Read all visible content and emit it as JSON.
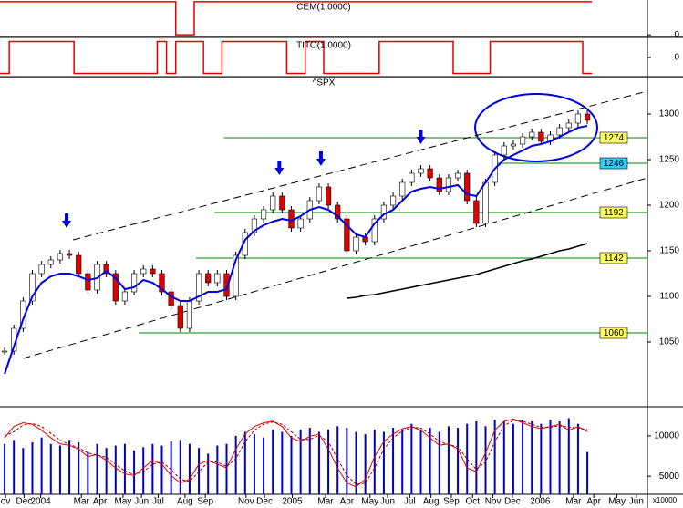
{
  "chart_data": [
    {
      "type": "step",
      "title": "CEM(1.0000)",
      "xlim": [
        0,
        70
      ],
      "ylim": [
        -0.05,
        1.05
      ],
      "yticks": [
        0
      ],
      "color": "#e00000",
      "values": [
        1,
        1,
        1,
        1,
        1,
        1,
        1,
        1,
        1,
        1,
        1,
        1,
        1,
        1,
        1,
        1,
        1,
        1,
        1,
        0,
        0,
        1,
        1,
        1,
        1,
        1,
        1,
        1,
        1,
        1,
        1,
        1,
        1,
        1,
        1,
        1,
        1,
        1,
        1,
        1,
        1,
        1,
        1,
        1,
        1,
        1,
        1,
        1,
        1,
        1,
        1,
        1,
        1,
        1,
        1,
        1,
        1,
        1,
        1,
        1,
        1,
        1,
        1,
        1
      ]
    },
    {
      "type": "step",
      "title": "TITO(1.0000)",
      "xlim": [
        0,
        70
      ],
      "ylim": [
        -1.2,
        1.2
      ],
      "yticks": [
        0
      ],
      "color": "#e00000",
      "values": [
        -1,
        1,
        1,
        1,
        1,
        1,
        1,
        1,
        -1,
        -1,
        -1,
        -1,
        -1,
        -1,
        -1,
        -1,
        -1,
        1,
        -1,
        1,
        1,
        1,
        -1,
        -1,
        1,
        1,
        1,
        1,
        1,
        1,
        1,
        -1,
        -1,
        1,
        1,
        -1,
        -1,
        -1,
        -1,
        -1,
        -1,
        1,
        1,
        1,
        1,
        1,
        1,
        1,
        1,
        -1,
        -1,
        -1,
        -1,
        1,
        1,
        1,
        1,
        1,
        1,
        1,
        1,
        1,
        1,
        -1
      ]
    },
    {
      "type": "candlestick",
      "title": "^SPX",
      "xlim": [
        0,
        70
      ],
      "ylim": [
        980,
        1340
      ],
      "yticks": [
        1050,
        1100,
        1150,
        1200,
        1250,
        1300
      ],
      "up_color": "#ffffff",
      "down_color": "#e00000",
      "values": [
        1040,
        1065,
        1095,
        1125,
        1135,
        1140,
        1147,
        1145,
        1125,
        1107,
        1135,
        1125,
        1095,
        1105,
        1125,
        1130,
        1125,
        1105,
        1090,
        1065,
        1095,
        1125,
        1115,
        1125,
        1100,
        1145,
        1170,
        1185,
        1195,
        1210,
        1195,
        1175,
        1185,
        1205,
        1220,
        1200,
        1185,
        1150,
        1165,
        1160,
        1185,
        1200,
        1210,
        1225,
        1235,
        1240,
        1230,
        1215,
        1230,
        1235,
        1205,
        1180,
        1225,
        1255,
        1265,
        1267,
        1275,
        1280,
        1270,
        1277,
        1285,
        1290,
        1300,
        1293
      ],
      "lines": [
        {
          "color": "#0000e0",
          "values": [
            1015,
            1045,
            1075,
            1100,
            1115,
            1122,
            1125,
            1125,
            1122,
            1118,
            1120,
            1128,
            1120,
            1108,
            1110,
            1118,
            1115,
            1108,
            1100,
            1095,
            1095,
            1100,
            1105,
            1105,
            1108,
            1140,
            1162,
            1172,
            1178,
            1182,
            1185,
            1183,
            1188,
            1195,
            1198,
            1195,
            1188,
            1178,
            1168,
            1165,
            1180,
            1190,
            1195,
            1205,
            1215,
            1218,
            1220,
            1218,
            1220,
            1222,
            1212,
            1210,
            1225,
            1240,
            1250,
            1255,
            1260,
            1265,
            1267,
            1270,
            1275,
            1280,
            1285,
            1287
          ]
        },
        {
          "color": "#000000",
          "values": [
            null,
            null,
            null,
            null,
            null,
            null,
            null,
            null,
            null,
            null,
            null,
            null,
            null,
            null,
            null,
            null,
            null,
            null,
            null,
            null,
            null,
            null,
            null,
            null,
            null,
            null,
            null,
            null,
            null,
            null,
            null,
            null,
            null,
            null,
            null,
            null,
            null,
            1098,
            1099,
            1101,
            1102,
            1104,
            1106,
            1108,
            1110,
            1112,
            1114,
            1116,
            1118,
            1120,
            1122,
            1124,
            1127,
            1130,
            1133,
            1136,
            1139,
            1141,
            1144,
            1147,
            1150,
            1152,
            1155,
            1158
          ]
        }
      ],
      "levels": [
        {
          "value": 1274,
          "from": 24.2,
          "color": "#ffff66"
        },
        {
          "value": 1246,
          "from": 53.7,
          "color": "#33ccff"
        },
        {
          "value": 1192,
          "from": 23.2,
          "color": "#ffff66"
        },
        {
          "value": 1142,
          "from": 21.2,
          "color": "#ffff66"
        },
        {
          "value": 1060,
          "from": 15.0,
          "color": "#ffff66"
        }
      ],
      "trendlines": [
        {
          "x": [
            7.9,
            70
          ],
          "y": [
            1162,
            1325
          ]
        },
        {
          "x": [
            2.5,
            70
          ],
          "y": [
            1032,
            1230
          ]
        }
      ],
      "markers": [
        {
          "x": 7.2,
          "y": 1175
        },
        {
          "x": 30.2,
          "y": 1233
        },
        {
          "x": 34.7,
          "y": 1243
        },
        {
          "x": 45.5,
          "y": 1267
        }
      ]
    },
    {
      "type": "volume",
      "xlim": [
        0,
        70
      ],
      "ylim": [
        2750,
        13500
      ],
      "yticks": [
        5000,
        10000
      ],
      "y2lim": [
        -5,
        110
      ],
      "unit": "x10000",
      "color": "#0000c0",
      "values": [
        9000,
        9500,
        8500,
        9200,
        9800,
        9000,
        8800,
        9500,
        9200,
        8000,
        9000,
        8500,
        8800,
        9000,
        8200,
        8600,
        9000,
        8800,
        9300,
        9500,
        9000,
        8500,
        7800,
        8800,
        9000,
        10000,
        10500,
        10200,
        9800,
        10800,
        10500,
        10000,
        10800,
        11000,
        10500,
        10800,
        11200,
        11000,
        10500,
        10200,
        10800,
        10500,
        11000,
        10800,
        11500,
        10800,
        11000,
        10500,
        11200,
        11000,
        11500,
        11800,
        11200,
        12000,
        11800,
        11500,
        12000,
        11800,
        11500,
        12000,
        11800,
        12200,
        11500,
        8000
      ],
      "series": [
        {
          "color": "#e00000",
          "dashed": false,
          "values": [
            70,
            85,
            90,
            88,
            80,
            70,
            62,
            60,
            55,
            45,
            48,
            40,
            30,
            22,
            20,
            30,
            40,
            35,
            20,
            10,
            15,
            35,
            40,
            35,
            30,
            55,
            75,
            85,
            90,
            92,
            85,
            70,
            65,
            72,
            75,
            55,
            30,
            10,
            5,
            15,
            45,
            65,
            75,
            82,
            85,
            80,
            70,
            60,
            62,
            55,
            30,
            25,
            50,
            80,
            92,
            95,
            90,
            85,
            82,
            85,
            88,
            80,
            85,
            78
          ],
          "axis": "y2"
        },
        {
          "color": "#a00000",
          "dashed": true,
          "values": [
            72,
            78,
            87,
            89,
            85,
            76,
            67,
            61,
            57,
            50,
            47,
            44,
            35,
            26,
            21,
            25,
            35,
            38,
            28,
            15,
            12,
            25,
            38,
            38,
            32,
            42,
            65,
            80,
            88,
            91,
            88,
            78,
            68,
            68,
            73,
            65,
            42,
            20,
            8,
            10,
            30,
            55,
            70,
            79,
            84,
            83,
            75,
            65,
            61,
            58,
            42,
            28,
            38,
            65,
            86,
            93,
            92,
            88,
            84,
            84,
            86,
            84,
            83,
            81
          ],
          "axis": "y2"
        }
      ],
      "xticks": [
        {
          "value": 0.6,
          "label": "ov"
        },
        {
          "value": 2.6,
          "label": "Dec"
        },
        {
          "value": 4.4,
          "label": "2004"
        },
        {
          "value": 8.8,
          "label": "Mar"
        },
        {
          "value": 10.8,
          "label": "Apr"
        },
        {
          "value": 13.3,
          "label": "May"
        },
        {
          "value": 15.3,
          "label": "Jun"
        },
        {
          "value": 17.1,
          "label": "Jul"
        },
        {
          "value": 20.0,
          "label": "Aug"
        },
        {
          "value": 22.2,
          "label": "Sep"
        },
        {
          "value": 26.6,
          "label": "Nov"
        },
        {
          "value": 28.6,
          "label": "Dec"
        },
        {
          "value": 31.6,
          "label": "2005"
        },
        {
          "value": 35.2,
          "label": "Mar"
        },
        {
          "value": 37.5,
          "label": "Apr"
        },
        {
          "value": 40.0,
          "label": "May"
        },
        {
          "value": 41.9,
          "label": "Jun"
        },
        {
          "value": 44.3,
          "label": "Jul"
        },
        {
          "value": 46.6,
          "label": "Aug"
        },
        {
          "value": 48.8,
          "label": "Sep"
        },
        {
          "value": 51.1,
          "label": "Oct"
        },
        {
          "value": 53.3,
          "label": "Nov"
        },
        {
          "value": 55.4,
          "label": "Dec"
        },
        {
          "value": 58.4,
          "label": "2006"
        },
        {
          "value": 62.0,
          "label": "Mar"
        },
        {
          "value": 64.2,
          "label": "Apr"
        },
        {
          "value": 66.7,
          "label": "May"
        },
        {
          "value": 68.8,
          "label": "Jun"
        }
      ]
    }
  ]
}
